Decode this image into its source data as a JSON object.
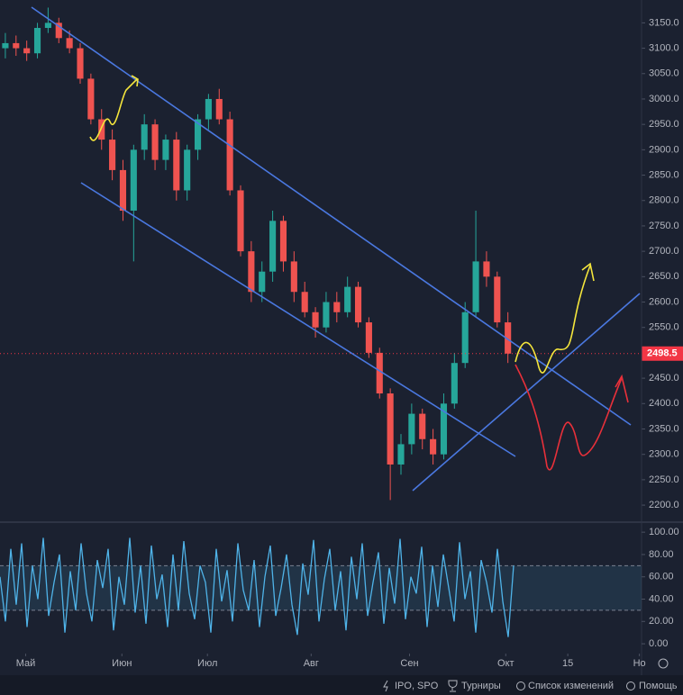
{
  "chart_data": [
    {
      "type": "candlestick",
      "open": [
        3100,
        3110,
        3100,
        3090,
        3140,
        3150,
        3120,
        3100,
        3040,
        2960,
        2920,
        2860,
        2780,
        2900,
        2950,
        2880,
        2920,
        2820,
        2900,
        2960,
        3000,
        2960,
        2820,
        2700,
        2620,
        2660,
        2760,
        2680,
        2620,
        2580,
        2550,
        2600,
        2580,
        2630,
        2560,
        2500,
        2420,
        2280,
        2320,
        2380,
        2330,
        2300,
        2400,
        2480,
        2580,
        2680,
        2650,
        2560
      ],
      "high": [
        3130,
        3125,
        3115,
        3150,
        3180,
        3160,
        3135,
        3110,
        3050,
        2980,
        2940,
        2880,
        2910,
        2970,
        2960,
        2930,
        2935,
        2910,
        2970,
        3010,
        3020,
        2975,
        2830,
        2720,
        2680,
        2780,
        2770,
        2700,
        2640,
        2590,
        2620,
        2620,
        2650,
        2640,
        2570,
        2510,
        2430,
        2340,
        2400,
        2390,
        2350,
        2420,
        2500,
        2600,
        2780,
        2700,
        2660,
        2580
      ],
      "low": [
        3080,
        3085,
        3075,
        3080,
        3130,
        3110,
        3090,
        3030,
        2950,
        2900,
        2840,
        2760,
        2680,
        2880,
        2860,
        2860,
        2800,
        2800,
        2880,
        2940,
        2950,
        2810,
        2690,
        2600,
        2600,
        2640,
        2660,
        2600,
        2570,
        2530,
        2540,
        2560,
        2570,
        2550,
        2490,
        2410,
        2210,
        2260,
        2300,
        2310,
        2280,
        2290,
        2390,
        2470,
        2570,
        2630,
        2550,
        2480
      ],
      "close": [
        3110,
        3100,
        3090,
        3140,
        3150,
        3120,
        3100,
        3040,
        2960,
        2920,
        2860,
        2780,
        2900,
        2950,
        2880,
        2920,
        2820,
        2900,
        2960,
        3000,
        2960,
        2820,
        2700,
        2620,
        2660,
        2760,
        2680,
        2620,
        2580,
        2550,
        2600,
        2580,
        2630,
        2560,
        2500,
        2420,
        2280,
        2320,
        2380,
        2330,
        2300,
        2400,
        2480,
        2580,
        2680,
        2650,
        2560,
        2498.5
      ],
      "up_color": "#26a69a",
      "down_color": "#ef5350",
      "last_price": 2498.5,
      "last_price_color": "#f23645",
      "ylim": [
        2170,
        3195
      ],
      "yticks": [
        {
          "value": 2200,
          "label": "2200.0"
        },
        {
          "value": 2250,
          "label": "2250.0"
        },
        {
          "value": 2300,
          "label": "2300.0"
        },
        {
          "value": 2350,
          "label": "2350.0"
        },
        {
          "value": 2400,
          "label": "2400.0"
        },
        {
          "value": 2450,
          "label": "2450.0"
        },
        {
          "value": 2500,
          "label": "2500.0"
        },
        {
          "value": 2550,
          "label": "2550.0"
        },
        {
          "value": 2600,
          "label": "2600.0"
        },
        {
          "value": 2650,
          "label": "2650.0"
        },
        {
          "value": 2700,
          "label": "2700.0"
        },
        {
          "value": 2750,
          "label": "2750.0"
        },
        {
          "value": 2800,
          "label": "2800.0"
        },
        {
          "value": 2850,
          "label": "2850.0"
        },
        {
          "value": 2900,
          "label": "2900.0"
        },
        {
          "value": 2950,
          "label": "2950.0"
        },
        {
          "value": 3000,
          "label": "3000.0"
        },
        {
          "value": 3050,
          "label": "3050.0"
        },
        {
          "value": 3100,
          "label": "3100.0"
        },
        {
          "value": 3150,
          "label": "3150.0"
        }
      ],
      "xlim": [
        -0.5,
        59.5
      ],
      "xticks": [
        {
          "value": 1.9,
          "label": "Май"
        },
        {
          "value": 10.9,
          "label": "Июн"
        },
        {
          "value": 18.9,
          "label": "Июл"
        },
        {
          "value": 28.6,
          "label": "Авг"
        },
        {
          "value": 37.8,
          "label": "Сен"
        },
        {
          "value": 46.8,
          "label": "Окт"
        },
        {
          "value": 52.6,
          "label": "15"
        },
        {
          "value": 59.3,
          "label": "Но"
        }
      ]
    },
    {
      "type": "line",
      "color": "#4fb3e8",
      "values": [
        60,
        20,
        85,
        35,
        90,
        15,
        70,
        40,
        95,
        25,
        55,
        80,
        10,
        65,
        30,
        90,
        45,
        20,
        75,
        50,
        85,
        12,
        60,
        35,
        95,
        28,
        70,
        18,
        88,
        40,
        62,
        15,
        80,
        30,
        92,
        45,
        22,
        70,
        55,
        10,
        85,
        38,
        66,
        20,
        90,
        48,
        30,
        75,
        15,
        60,
        88,
        25,
        50,
        80,
        35,
        8,
        72,
        44,
        93,
        20,
        58,
        85,
        30,
        65,
        12,
        78,
        40,
        90,
        25,
        55,
        82,
        18,
        68,
        36,
        94,
        22,
        60,
        45,
        87,
        15,
        70,
        33,
        80,
        50,
        20,
        91,
        40,
        65,
        10,
        75,
        55,
        28,
        85,
        38,
        6,
        70
      ],
      "bands": [
        30,
        70
      ],
      "ylim": [
        -8,
        109
      ],
      "yticks": [
        {
          "value": 0,
          "label": "0.00"
        },
        {
          "value": 20,
          "label": "20.00"
        },
        {
          "value": 40,
          "label": "40.00"
        },
        {
          "value": 60,
          "label": "60.00"
        },
        {
          "value": 80,
          "label": "80.00"
        },
        {
          "value": 100,
          "label": "100.00"
        }
      ]
    }
  ],
  "toolbar": [
    "IPO, SPO",
    "Турниры",
    "Список изменений",
    "Помощь"
  ]
}
